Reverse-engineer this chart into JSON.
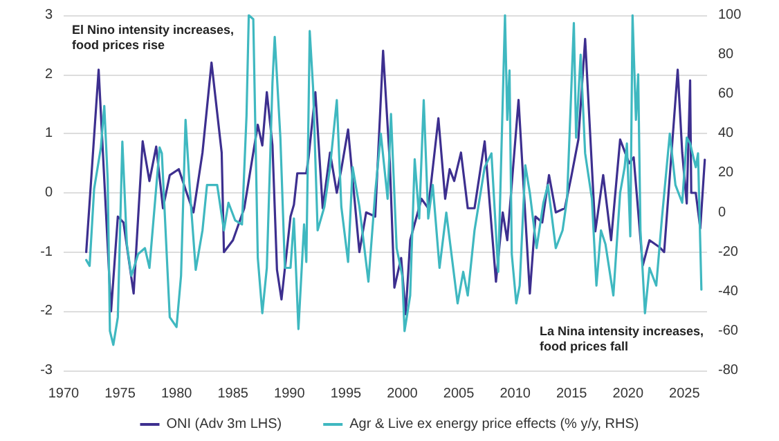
{
  "chart_data": {
    "type": "line",
    "xlim": [
      1970,
      2027
    ],
    "xticks": [
      1970,
      1975,
      1980,
      1985,
      1990,
      1995,
      2000,
      2005,
      2010,
      2015,
      2020,
      2025
    ],
    "ylim": [
      -3,
      3
    ],
    "yticks": [
      -3,
      -2,
      -1,
      0,
      1,
      2,
      3
    ],
    "y2lim": [
      -80,
      100
    ],
    "y2ticks": [
      -80,
      -60,
      -40,
      -20,
      0,
      20,
      40,
      60,
      80,
      100
    ],
    "grid": "y",
    "legend": "bottom",
    "marker": "none",
    "line_style": "solid",
    "annotations": [
      "El Nino intensity increases,\nfood prices rise",
      "La Nina intensity increases,\nfood prices fall"
    ],
    "series": [
      {
        "name": "ONI (Adv 3m LHS)",
        "color": "#3d2f8f",
        "x": [
          1972.0,
          1973.1,
          1974.2,
          1974.8,
          1975.3,
          1976.2,
          1977.0,
          1977.6,
          1978.2,
          1978.8,
          1979.4,
          1980.2,
          1980.9,
          1981.5,
          1982.3,
          1983.1,
          1984.0,
          1984.2,
          1985.0,
          1986.0,
          1987.2,
          1987.6,
          1988.0,
          1988.5,
          1988.9,
          1989.3,
          1990.1,
          1990.4,
          1990.7,
          1991.5,
          1991.7,
          1992.3,
          1992.95,
          1993.6,
          1994.2,
          1994.6,
          1995.2,
          1996.2,
          1996.8,
          1997.6,
          1998.3,
          1998.9,
          1999.3,
          1999.9,
          2000.3,
          2000.7,
          2001.7,
          2002.3,
          2003.2,
          2003.8,
          2004.2,
          2004.6,
          2005.2,
          2005.8,
          2006.4,
          2007.3,
          2008.3,
          2008.9,
          2009.3,
          2010.3,
          2011.3,
          2011.8,
          2012.4,
          2013.0,
          2013.6,
          2014.4,
          2015.0,
          2015.6,
          2016.2,
          2017.1,
          2017.8,
          2018.5,
          2019.3,
          2020.1,
          2020.5,
          2021.3,
          2021.9,
          2022.8,
          2023.2,
          2024.4,
          2024.8,
          2025.2,
          2025.5,
          2025.6,
          2026.0,
          2026.4,
          2026.8
        ],
        "values": [
          -1.0,
          2.08,
          -2.0,
          -0.4,
          -0.5,
          -1.7,
          0.87,
          0.2,
          0.78,
          -0.26,
          0.3,
          0.4,
          0.0,
          -0.33,
          0.68,
          2.2,
          0.68,
          -1.0,
          -0.8,
          -0.26,
          1.15,
          0.8,
          1.7,
          0.8,
          -1.3,
          -1.8,
          -0.4,
          -0.2,
          0.33,
          0.33,
          0.6,
          1.7,
          -0.26,
          0.68,
          0.0,
          0.4,
          1.07,
          -1.0,
          -0.33,
          -0.4,
          2.4,
          0.5,
          -1.6,
          -1.1,
          -2.05,
          -0.8,
          -0.1,
          -0.26,
          1.26,
          -0.1,
          0.4,
          0.2,
          0.68,
          -0.26,
          -0.26,
          0.87,
          -1.5,
          -0.33,
          -0.8,
          1.57,
          -1.7,
          -0.4,
          -0.5,
          0.3,
          -0.33,
          -0.26,
          0.3,
          0.9,
          2.6,
          -0.65,
          0.3,
          -0.8,
          0.9,
          0.5,
          0.6,
          -1.23,
          -0.8,
          -0.92,
          -1.0,
          2.08,
          0.68,
          -0.18,
          1.9,
          0.0,
          0.0,
          -0.6,
          0.56
        ]
      },
      {
        "name": "Agr & Live ex energy price effects (% y/y, RHS)",
        "color": "#3fb8c0",
        "axis": "y2",
        "x": [
          1972.0,
          1972.3,
          1972.7,
          1973.3,
          1973.6,
          1973.9,
          1974.1,
          1974.4,
          1974.8,
          1975.2,
          1975.6,
          1976.0,
          1976.6,
          1977.2,
          1977.6,
          1978.5,
          1978.7,
          1979.4,
          1980.0,
          1980.4,
          1980.8,
          1981.2,
          1981.7,
          1982.3,
          1982.7,
          1983.6,
          1984.2,
          1984.6,
          1985.2,
          1985.8,
          1986.2,
          1986.4,
          1986.8,
          1987.2,
          1987.6,
          1988.0,
          1988.5,
          1988.7,
          1989.2,
          1989.6,
          1990.1,
          1990.4,
          1990.8,
          1991.3,
          1991.5,
          1991.8,
          1992.1,
          1992.5,
          1993.1,
          1993.6,
          1994.2,
          1994.6,
          1995.2,
          1995.6,
          1996.2,
          1997.0,
          1997.6,
          1998.1,
          1998.7,
          1999.0,
          1999.5,
          2000.0,
          2000.2,
          2000.7,
          2001.1,
          2001.5,
          2001.9,
          2002.3,
          2002.7,
          2003.3,
          2003.9,
          2004.9,
          2005.4,
          2005.8,
          2006.4,
          2007.3,
          2007.9,
          2008.5,
          2009.1,
          2009.3,
          2009.5,
          2009.7,
          2010.1,
          2010.4,
          2010.9,
          2011.3,
          2011.9,
          2012.5,
          2012.9,
          2013.6,
          2014.2,
          2014.6,
          2015.2,
          2015.4,
          2015.8,
          2016.2,
          2016.8,
          2017.2,
          2017.6,
          2018.0,
          2018.7,
          2019.3,
          2019.7,
          2019.9,
          2020.2,
          2020.4,
          2020.7,
          2020.9,
          2021.1,
          2021.5,
          2021.9,
          2022.5,
          2023.0,
          2023.7,
          2024.2,
          2024.8,
          2025.2,
          2025.5,
          2026.0,
          2026.2,
          2026.5
        ],
        "values": [
          -24,
          -27,
          12,
          33,
          54,
          17,
          -60,
          -67,
          -53,
          36,
          -16,
          -32,
          -21,
          -18,
          -28,
          33,
          30,
          -53,
          -58,
          -32,
          47,
          10,
          -29,
          -9,
          14,
          14,
          -9,
          5,
          -4,
          -6,
          49,
          100,
          98,
          -23,
          -51,
          -28,
          66,
          89,
          38,
          -28,
          -28,
          -3,
          -59,
          -6,
          -25,
          92,
          63,
          -9,
          3,
          23,
          57,
          3,
          -25,
          23,
          3,
          -35,
          10,
          40,
          7,
          50,
          -18,
          -32,
          -60,
          -42,
          27,
          -3,
          57,
          -3,
          14,
          -28,
          0,
          -46,
          -30,
          -42,
          -9,
          23,
          30,
          -30,
          100,
          47,
          72,
          -21,
          -46,
          -37,
          24,
          10,
          -18,
          5,
          14,
          -18,
          -9,
          7,
          96,
          38,
          80,
          30,
          7,
          -37,
          -9,
          -16,
          -42,
          10,
          23,
          35,
          -12,
          100,
          47,
          70,
          -9,
          -51,
          -28,
          -37,
          -3,
          40,
          14,
          5,
          38,
          35,
          23,
          30,
          -39
        ]
      }
    ]
  }
}
